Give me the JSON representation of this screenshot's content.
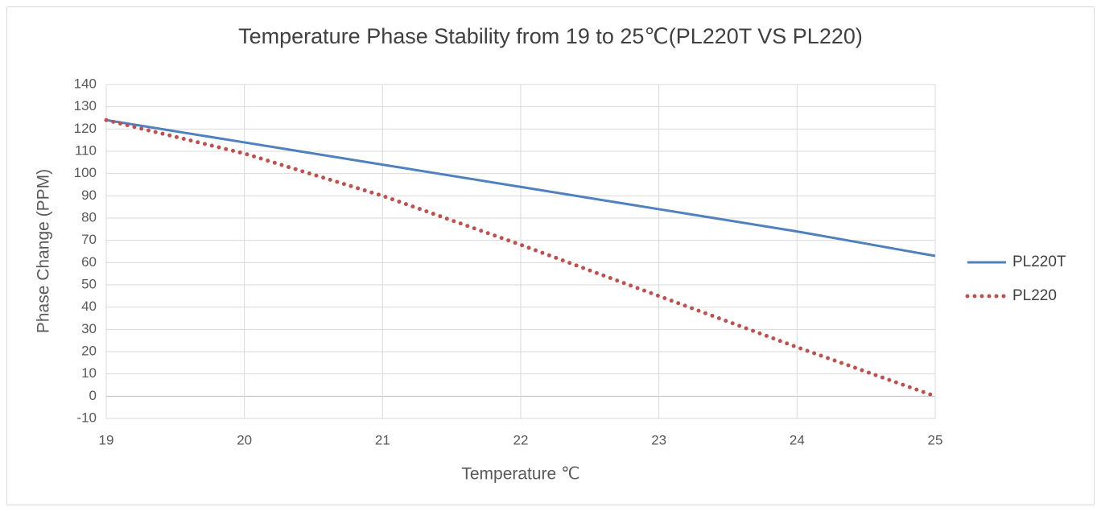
{
  "chart_data": {
    "type": "line",
    "title": "Temperature Phase Stability from 19 to 25℃(PL220T VS PL220)",
    "x_label": "Temperature ℃",
    "y_label": "Phase Change (PPM)",
    "x": [
      19,
      20,
      21,
      22,
      23,
      24,
      25
    ],
    "series": [
      {
        "name": "PL220T",
        "color": "#4f81bd",
        "style": "solid",
        "values": [
          124,
          114,
          104,
          94,
          84,
          74,
          63
        ]
      },
      {
        "name": "PL220",
        "color": "#c0504d",
        "style": "dotted",
        "values": [
          124,
          109,
          90,
          68,
          45,
          22,
          0
        ]
      }
    ],
    "xlim": [
      19,
      25
    ],
    "xticks": [
      19,
      20,
      21,
      22,
      23,
      24,
      25
    ],
    "ylim": [
      -10,
      140
    ],
    "yticks": [
      -10,
      0,
      10,
      20,
      30,
      40,
      50,
      60,
      70,
      80,
      90,
      100,
      110,
      120,
      130,
      140
    ],
    "grid": true,
    "legend": "right"
  }
}
